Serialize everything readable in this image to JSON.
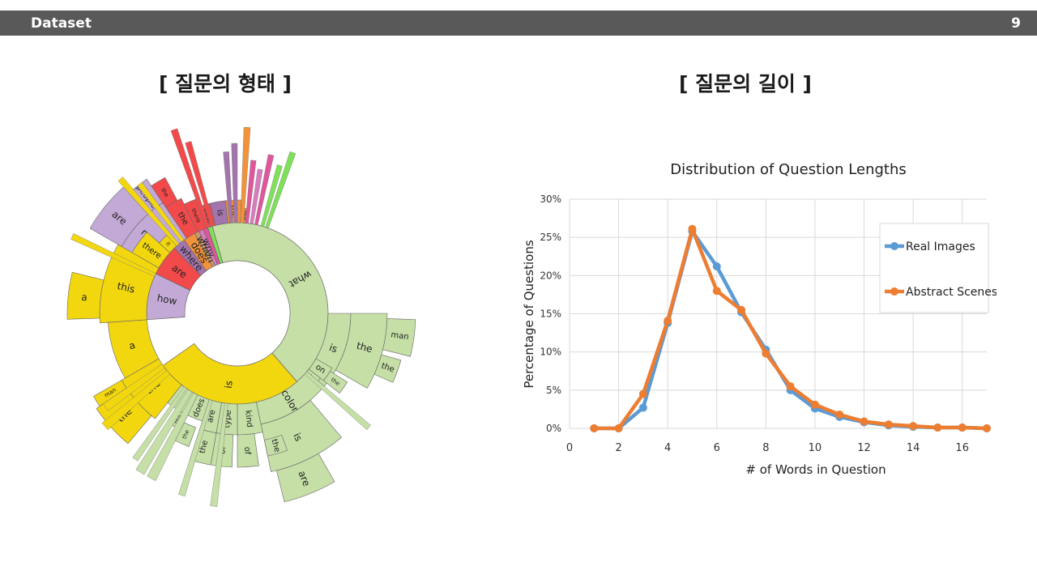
{
  "header": {
    "title": "Dataset",
    "page_number": "9"
  },
  "left_panel": {
    "title": "[ 질문의 형태 ]"
  },
  "right_panel": {
    "title": "[ 질문의 길이 ]"
  },
  "chart_data": [
    {
      "type": "sunburst",
      "title": "",
      "rings": [
        {
          "level": 1,
          "segments": [
            {
              "label": "how",
              "color": "#c3a9d6",
              "share": 0.0833
            },
            {
              "label": "are",
              "color": "#f24a4a",
              "share": 0.0556
            },
            {
              "label": "where",
              "color": "#a374ad",
              "share": 0.0222
            },
            {
              "label": "does",
              "color": "#f2933b",
              "share": 0.0222
            },
            {
              "label": "which",
              "color": "#c99a6e",
              "share": 0.0083
            },
            {
              "label": "why",
              "color": "#d97bc1",
              "share": 0.0083
            },
            {
              "label": "",
              "color": "#e0569b",
              "share": 0.0083
            },
            {
              "label": "",
              "color": "#7fe05a",
              "share": 0.0083
            },
            {
              "label": "what",
              "color": "#c5dfa6",
              "share": 0.4306
            },
            {
              "label": "is",
              "color": "#f2d70f",
              "share": 0.2667
            }
          ]
        }
      ],
      "level2_labels": [
        "many",
        "the",
        "there",
        "these",
        "is",
        "the",
        "this",
        "is",
        "the",
        "on",
        "in",
        "this",
        "color",
        "is",
        "kind",
        "type",
        "are",
        "does",
        "is",
        "the",
        "a",
        "there",
        "it",
        "this",
        "a",
        "the",
        "man"
      ],
      "level3_labels": [
        "are",
        "people",
        "the",
        "man",
        "the",
        "the",
        "are",
        "of",
        "of",
        "the",
        "the",
        "the",
        "the"
      ]
    },
    {
      "type": "line",
      "title": "Distribution of Question Lengths",
      "xlabel": "# of Words in Question",
      "ylabel": "Percentage of Questions",
      "xlim": [
        0,
        17
      ],
      "ylim": [
        0,
        30
      ],
      "x_ticks": [
        "0",
        "2",
        "4",
        "6",
        "8",
        "10",
        "12",
        "14",
        "16"
      ],
      "y_ticks": [
        "0%",
        "5%",
        "10%",
        "15%",
        "20%",
        "25%",
        "30%"
      ],
      "grid": true,
      "legend": "right",
      "series": [
        {
          "name": "Real Images",
          "color": "#5b9bd5",
          "x": [
            1,
            2,
            3,
            4,
            5,
            6,
            7,
            8,
            9,
            10,
            11,
            12,
            13,
            14,
            15,
            16,
            17
          ],
          "y": [
            0,
            0,
            2.7,
            13.8,
            25.8,
            21.2,
            15.2,
            10.3,
            5.0,
            2.6,
            1.5,
            0.8,
            0.4,
            0.2,
            0.1,
            0.1,
            0
          ]
        },
        {
          "name": "Abstract Scenes",
          "color": "#ed7d31",
          "x": [
            1,
            2,
            3,
            4,
            5,
            6,
            7,
            8,
            9,
            10,
            11,
            12,
            13,
            14,
            15,
            16,
            17
          ],
          "y": [
            0,
            0,
            4.5,
            14.1,
            26.1,
            18.0,
            15.5,
            9.8,
            5.5,
            3.1,
            1.8,
            0.9,
            0.5,
            0.3,
            0.1,
            0.1,
            0
          ]
        }
      ]
    }
  ]
}
